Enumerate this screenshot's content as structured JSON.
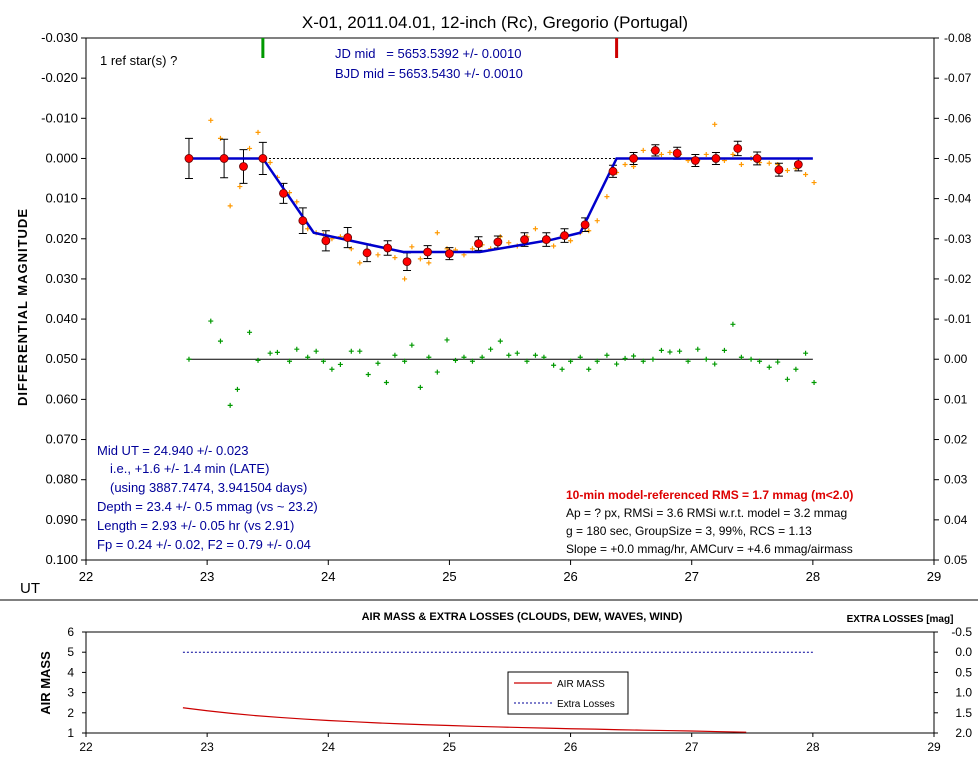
{
  "chart_data": [
    {
      "type": "scatter",
      "title": "X-01, 2011.04.01, 12-inch (Rc), Gregorio (Portugal)",
      "xlabel": "UT",
      "ylabel": "DIFFERENTIAL MAGNITUDE",
      "xlim": [
        22,
        29
      ],
      "ylim": [
        -0.03,
        0.1
      ],
      "y_inverted": true,
      "y2lim": [
        -0.08,
        0.05
      ],
      "x_ticks": [
        "22",
        "23",
        "24",
        "25",
        "26",
        "27",
        "28",
        "29"
      ],
      "y_ticks": [
        "-0.030",
        "-0.020",
        "-0.010",
        "0.000",
        "0.010",
        "0.020",
        "0.030",
        "0.040",
        "0.050",
        "0.060",
        "0.070",
        "0.080",
        "0.090",
        "0.100"
      ],
      "y2_ticks": [
        "-0.08",
        "-0.07",
        "-0.06",
        "-0.05",
        "-0.04",
        "-0.03",
        "-0.02",
        "-0.01",
        "0.00",
        "0.01",
        "0.02",
        "0.03",
        "0.04",
        "0.05"
      ],
      "grid": false,
      "baseline_y": 0.0,
      "residual_baseline_y": 0.05,
      "ingress_marker_ut": 23.46,
      "egress_marker_ut": 26.38,
      "annotations": {
        "ref_star": "1 ref star(s) ?",
        "jd_mid": "JD mid   = 5653.5392 +/- 0.0010",
        "bjd_mid": "BJD mid = 5653.5430 +/- 0.0010",
        "mid_ut": "Mid UT = 24.940 +/- 0.023",
        "late": "i.e., +1.6 +/- 1.4 min (LATE)",
        "using": "(using 3887.7474, 3.941504 days)",
        "depth": "Depth = 23.4 +/- 0.5 mmag (vs ~ 23.2)",
        "length": "Length = 2.93 +/- 0.05 hr (vs 2.91)",
        "fp": "Fp = 0.24 +/- 0.02, F2 = 0.79 +/- 0.04",
        "rms": "10-min model-referenced RMS = 1.7 mmag (m<2.0)",
        "ap": "Ap = ? px, RMSi = 3.6 RMSi w.r.t. model = 3.2 mmag",
        "g": "g = 180 sec, GroupSize = 3, 99%, RCS = 1.13",
        "slope": "Slope = +0.0 mmag/hr, AMCurv = +4.6 mmag/airmass"
      },
      "series": [
        {
          "kind": "model",
          "color": "#0000cc",
          "x": [
            22.85,
            23.46,
            23.88,
            24.62,
            25.25,
            25.85,
            26.08,
            26.38,
            28.0
          ],
          "y": [
            0.0,
            0.0,
            0.0185,
            0.0233,
            0.0233,
            0.0202,
            0.0185,
            0.0,
            0.0
          ]
        },
        {
          "kind": "binned",
          "color": "#ff0000",
          "x": [
            22.85,
            23.14,
            23.3,
            23.46,
            23.63,
            23.79,
            23.98,
            24.16,
            24.32,
            24.49,
            24.65,
            24.82,
            25.0,
            25.24,
            25.4,
            25.62,
            25.8,
            25.95,
            26.12,
            26.35,
            26.52,
            26.7,
            26.88,
            27.03,
            27.2,
            27.38,
            27.54,
            27.72,
            27.88
          ],
          "y": [
            0.0,
            0.0,
            0.002,
            0.0,
            0.0087,
            0.0155,
            0.0205,
            0.0197,
            0.0235,
            0.0223,
            0.0257,
            0.0233,
            0.0237,
            0.0212,
            0.0208,
            0.0202,
            0.0202,
            0.0192,
            0.0165,
            0.0032,
            0.0,
            -0.002,
            -0.0013,
            0.0005,
            0.0,
            -0.0025,
            0.0,
            0.0028,
            0.0015
          ],
          "yerr": [
            0.005,
            0.0048,
            0.0042,
            0.004,
            0.0025,
            0.0032,
            0.0025,
            0.0025,
            0.0022,
            0.0018,
            0.0022,
            0.0016,
            0.0015,
            0.0017,
            0.0015,
            0.0017,
            0.0017,
            0.0017,
            0.0017,
            0.0015,
            0.0015,
            0.0014,
            0.0015,
            0.0015,
            0.0015,
            0.0018,
            0.0016,
            0.0016,
            0.0016
          ]
        },
        {
          "kind": "individual",
          "color": "#ff9900",
          "x": [
            23.03,
            23.11,
            23.19,
            23.27,
            23.35,
            23.42,
            23.52,
            23.58,
            23.68,
            23.74,
            23.83,
            23.9,
            23.96,
            24.03,
            24.1,
            24.19,
            24.26,
            24.33,
            24.41,
            24.48,
            24.55,
            24.63,
            24.69,
            24.76,
            24.83,
            24.9,
            24.98,
            25.05,
            25.12,
            25.19,
            25.27,
            25.34,
            25.42,
            25.49,
            25.56,
            25.64,
            25.71,
            25.78,
            25.86,
            25.93,
            26.0,
            26.08,
            26.15,
            26.22,
            26.3,
            26.38,
            26.45,
            26.52,
            26.6,
            26.68,
            26.75,
            26.82,
            26.9,
            26.97,
            27.05,
            27.12,
            27.19,
            27.27,
            27.34,
            27.41,
            27.49,
            27.56,
            27.64,
            27.71,
            27.79,
            27.86,
            27.94,
            28.01
          ],
          "y": [
            -0.0095,
            -0.005,
            0.0118,
            0.007,
            -0.0025,
            -0.0065,
            0.001,
            0.0047,
            0.0085,
            0.0108,
            0.0175,
            0.0185,
            0.019,
            0.02,
            0.0195,
            0.0225,
            0.026,
            0.0235,
            0.024,
            0.022,
            0.0247,
            0.03,
            0.022,
            0.025,
            0.026,
            0.0185,
            0.0225,
            0.0228,
            0.024,
            0.0225,
            0.0215,
            0.0225,
            0.0195,
            0.021,
            0.0218,
            0.0195,
            0.0175,
            0.0205,
            0.0218,
            0.0192,
            0.0205,
            0.0185,
            0.018,
            0.0155,
            0.0095,
            0.0035,
            0.0015,
            0.002,
            -0.002,
            -0.002,
            -0.001,
            -0.0015,
            -0.001,
            0.0005,
            0.0005,
            -0.001,
            -0.0085,
            0.0005,
            -0.001,
            0.0015,
            0.0,
            0.001,
            0.0012,
            0.0015,
            0.003,
            0.0025,
            0.004,
            0.006
          ]
        },
        {
          "kind": "residuals",
          "color": "#009900",
          "x": [
            22.85,
            23.03,
            23.11,
            23.19,
            23.25,
            23.35,
            23.42,
            23.52,
            23.58,
            23.68,
            23.74,
            23.83,
            23.9,
            23.96,
            24.03,
            24.1,
            24.19,
            24.26,
            24.33,
            24.41,
            24.48,
            24.55,
            24.63,
            24.69,
            24.76,
            24.83,
            24.9,
            24.98,
            25.05,
            25.12,
            25.19,
            25.27,
            25.34,
            25.42,
            25.49,
            25.56,
            25.64,
            25.71,
            25.78,
            25.86,
            25.93,
            26.0,
            26.08,
            26.15,
            26.22,
            26.3,
            26.38,
            26.45,
            26.52,
            26.6,
            26.68,
            26.75,
            26.82,
            26.9,
            26.97,
            27.05,
            27.12,
            27.19,
            27.27,
            27.34,
            27.41,
            27.49,
            27.56,
            27.64,
            27.71,
            27.79,
            27.86,
            27.94,
            28.01
          ],
          "y": [
            0.05,
            0.0405,
            0.0455,
            0.0615,
            0.0575,
            0.0433,
            0.0503,
            0.0485,
            0.0483,
            0.0505,
            0.0475,
            0.0495,
            0.048,
            0.0505,
            0.0525,
            0.0513,
            0.048,
            0.048,
            0.0538,
            0.051,
            0.0558,
            0.049,
            0.0505,
            0.0465,
            0.057,
            0.0495,
            0.0532,
            0.0452,
            0.0503,
            0.0495,
            0.0505,
            0.0495,
            0.0475,
            0.0455,
            0.049,
            0.0485,
            0.0505,
            0.049,
            0.0495,
            0.0515,
            0.0525,
            0.0505,
            0.0495,
            0.0525,
            0.0505,
            0.049,
            0.0512,
            0.0498,
            0.0492,
            0.0505,
            0.05,
            0.0478,
            0.0482,
            0.048,
            0.0505,
            0.0475,
            0.05,
            0.0512,
            0.0478,
            0.0413,
            0.0495,
            0.05,
            0.0505,
            0.052,
            0.0507,
            0.055,
            0.0525,
            0.0485,
            0.0558
          ]
        }
      ]
    },
    {
      "type": "line",
      "title": "AIR MASS & EXTRA LOSSES (CLOUDS, DEW, WAVES, WIND)",
      "xlabel": "",
      "ylabel": "AIR MASS",
      "y2label": "EXTRA LOSSES [mag]",
      "xlim": [
        22,
        29
      ],
      "ylim": [
        1,
        6
      ],
      "y2lim": [
        -0.5,
        2.0
      ],
      "x_ticks": [
        "22",
        "23",
        "24",
        "25",
        "26",
        "27",
        "28",
        "29"
      ],
      "y_ticks": [
        "1",
        "2",
        "3",
        "4",
        "5",
        "6"
      ],
      "y2_ticks": [
        "-0.5",
        "0.0",
        "0.5",
        "1.0",
        "1.5",
        "2.0"
      ],
      "legend": [
        "AIR MASS",
        "Extra Losses"
      ],
      "legend_position": "center",
      "series": [
        {
          "name": "AIR MASS",
          "color": "#cc0000",
          "x": [
            22.8,
            23.0,
            23.2,
            23.4,
            23.6,
            23.8,
            24.0,
            24.2,
            24.4,
            24.6,
            24.8,
            25.0,
            25.2,
            25.4,
            25.6,
            25.8,
            26.0,
            26.2,
            26.4,
            26.6,
            26.8,
            27.0,
            27.2,
            27.45
          ],
          "y": [
            2.25,
            2.1,
            1.97,
            1.86,
            1.77,
            1.69,
            1.62,
            1.56,
            1.5,
            1.45,
            1.41,
            1.37,
            1.33,
            1.3,
            1.27,
            1.24,
            1.21,
            1.19,
            1.16,
            1.14,
            1.12,
            1.1,
            1.07,
            1.04
          ]
        },
        {
          "name": "Extra Losses",
          "color": "#000099",
          "axis": "y2",
          "x": [
            22.8,
            28.0
          ],
          "y": [
            0.0,
            0.0
          ]
        }
      ]
    }
  ]
}
